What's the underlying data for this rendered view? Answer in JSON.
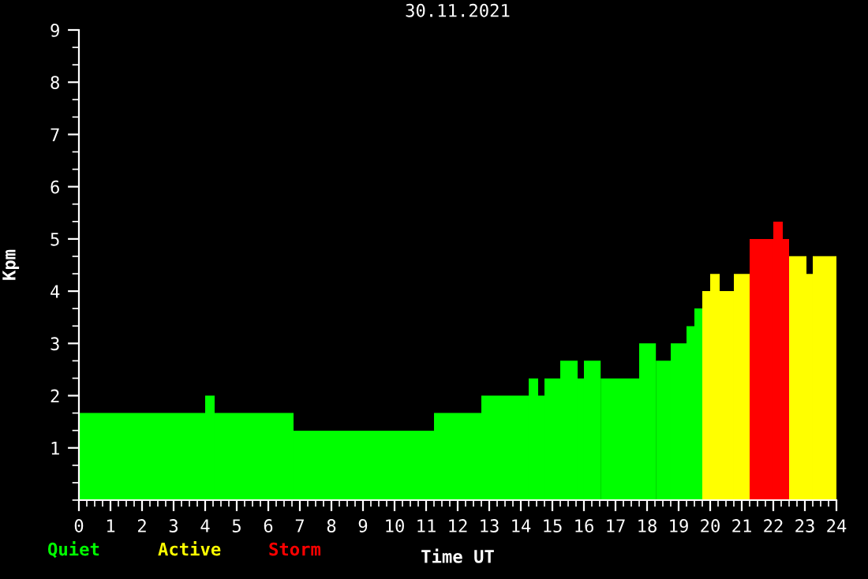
{
  "chart_data": {
    "type": "histogram",
    "title": "30.11.2021",
    "xlabel": "Time UT",
    "ylabel": "Kpm",
    "bins": [
      0,
      4.0,
      4.3,
      6.8,
      11.25,
      12.75,
      14.25,
      14.55,
      14.75,
      15.25,
      15.8,
      16.0,
      16.53,
      17.75,
      18.28,
      18.75,
      19.25,
      19.5,
      19.75,
      20.0,
      20.3,
      20.75,
      21.25,
      22.0,
      22.3,
      22.5,
      23.05,
      23.25,
      24
    ],
    "series": [
      {
        "name": "Quiet",
        "color": "#00ff00",
        "values": [
          1.67,
          2.0,
          1.67,
          1.33,
          1.67,
          2.0,
          2.33,
          2.0,
          2.33,
          2.67,
          2.33,
          2.67,
          2.33,
          3.0,
          2.67,
          3.0,
          3.33,
          3.67,
          null,
          null,
          null,
          null,
          null,
          null,
          null,
          null,
          null,
          null
        ]
      },
      {
        "name": "Active",
        "color": "#ffff00",
        "values": [
          null,
          null,
          null,
          null,
          null,
          null,
          null,
          null,
          null,
          null,
          null,
          null,
          null,
          null,
          null,
          null,
          null,
          null,
          4.0,
          4.33,
          4.0,
          4.33,
          null,
          null,
          null,
          4.67,
          4.33,
          4.67
        ]
      },
      {
        "name": "Storm",
        "color": "#ff0000",
        "values": [
          null,
          null,
          null,
          null,
          null,
          null,
          null,
          null,
          null,
          null,
          null,
          null,
          null,
          null,
          null,
          null,
          null,
          null,
          null,
          null,
          null,
          null,
          5.0,
          5.33,
          5.0,
          null,
          null,
          null
        ]
      }
    ],
    "xlim": [
      0,
      24
    ],
    "xticks": [
      0,
      1,
      2,
      3,
      4,
      5,
      6,
      7,
      8,
      9,
      10,
      11,
      12,
      13,
      14,
      15,
      16,
      17,
      18,
      19,
      20,
      21,
      22,
      23,
      24
    ],
    "ylim": [
      0,
      9
    ],
    "yticks": [
      1,
      2,
      3,
      4,
      5,
      6,
      7,
      8,
      9
    ],
    "legend": "bottom left",
    "grid": false
  }
}
